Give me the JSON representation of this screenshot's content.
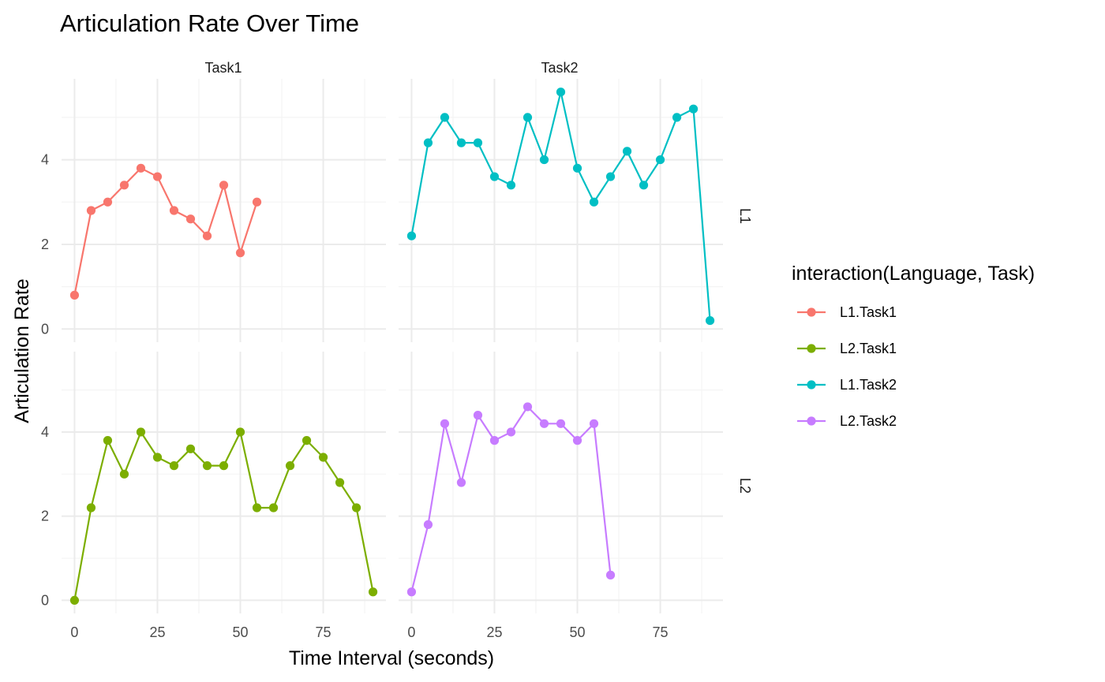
{
  "chart_data": {
    "type": "line",
    "title": "Articulation Rate Over Time",
    "xlabel": "Time Interval (seconds)",
    "ylabel": "Articulation Rate",
    "xlim": [
      0,
      90
    ],
    "ylim": [
      0,
      5.6
    ],
    "x_ticks": [
      "0",
      "25",
      "50",
      "75"
    ],
    "y_ticks": [
      "0",
      "2",
      "4"
    ],
    "grid": true,
    "facet_cols": [
      "Task1",
      "Task2"
    ],
    "facet_rows": [
      "L1",
      "L2"
    ],
    "legend": {
      "title": "interaction(Language, Task)",
      "position": "right",
      "entries": [
        {
          "label": "L1.Task1",
          "color": "#F8766D"
        },
        {
          "label": "L2.Task1",
          "color": "#7CAE00"
        },
        {
          "label": "L1.Task2",
          "color": "#00BFC4"
        },
        {
          "label": "L2.Task2",
          "color": "#C77CFF"
        }
      ]
    },
    "series": [
      {
        "name": "L1.Task1",
        "row": "L1",
        "col": "Task1",
        "color": "#F8766D",
        "x": [
          0,
          5,
          10,
          15,
          20,
          25,
          30,
          35,
          40,
          45,
          50,
          55
        ],
        "y": [
          0.8,
          2.8,
          3.0,
          3.4,
          3.8,
          3.6,
          2.8,
          2.6,
          2.2,
          3.4,
          1.8,
          3.0
        ]
      },
      {
        "name": "L1.Task2",
        "row": "L1",
        "col": "Task2",
        "color": "#00BFC4",
        "x": [
          0,
          5,
          10,
          15,
          20,
          25,
          30,
          35,
          40,
          45,
          50,
          55,
          60,
          65,
          70,
          75,
          80,
          85,
          90
        ],
        "y": [
          2.2,
          4.4,
          5.0,
          4.4,
          4.4,
          3.6,
          3.4,
          5.0,
          4.0,
          5.6,
          3.8,
          3.0,
          3.6,
          4.2,
          3.4,
          4.0,
          5.0,
          5.2,
          0.2
        ]
      },
      {
        "name": "L2.Task1",
        "row": "L2",
        "col": "Task1",
        "color": "#7CAE00",
        "x": [
          0,
          5,
          10,
          15,
          20,
          25,
          30,
          35,
          40,
          45,
          50,
          55,
          60,
          65,
          70,
          75,
          80,
          85,
          90
        ],
        "y": [
          0.0,
          2.2,
          3.8,
          3.0,
          4.0,
          3.4,
          3.2,
          3.6,
          3.2,
          3.2,
          4.0,
          2.2,
          2.2,
          3.2,
          3.8,
          3.4,
          2.8,
          2.2,
          0.2
        ]
      },
      {
        "name": "L2.Task2",
        "row": "L2",
        "col": "Task2",
        "color": "#C77CFF",
        "x": [
          0,
          5,
          10,
          15,
          20,
          25,
          30,
          35,
          40,
          45,
          50,
          55,
          60
        ],
        "y": [
          0.2,
          1.8,
          4.2,
          2.8,
          4.4,
          3.8,
          4.0,
          4.6,
          4.2,
          4.2,
          3.8,
          4.2,
          0.6
        ]
      }
    ]
  }
}
